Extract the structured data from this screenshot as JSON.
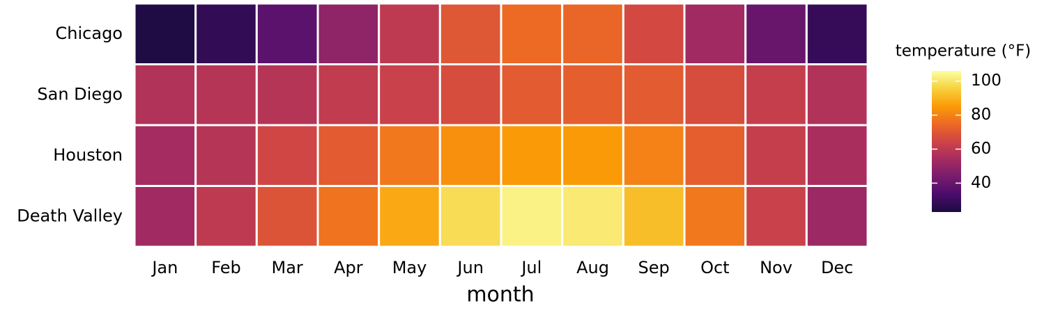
{
  "chart_data": {
    "type": "heatmap",
    "x_label": "month",
    "legend_title": "temperature (°F)",
    "categories": [
      "Jan",
      "Feb",
      "Mar",
      "Apr",
      "May",
      "Jun",
      "Jul",
      "Aug",
      "Sep",
      "Oct",
      "Nov",
      "Dec"
    ],
    "rows": [
      "Chicago",
      "San Diego",
      "Houston",
      "Death Valley"
    ],
    "values": [
      [
        24,
        28,
        37,
        49,
        60,
        70,
        75,
        74,
        66,
        53,
        40,
        29
      ],
      [
        57,
        58,
        58,
        61,
        63,
        67,
        71,
        72,
        71,
        67,
        62,
        57
      ],
      [
        54,
        58,
        65,
        71,
        78,
        83,
        85,
        85,
        80,
        72,
        62,
        55
      ],
      [
        53,
        60,
        69,
        77,
        88,
        98,
        103,
        101,
        92,
        78,
        63,
        52
      ]
    ],
    "zlim": [
      23,
      106
    ],
    "zticks": [
      40,
      60,
      80,
      100
    ],
    "colormap": [
      "#1b0c41",
      "#4a0c6b",
      "#781c6d",
      "#a52c60",
      "#cf4446",
      "#ed6925",
      "#fb9b06",
      "#f7d13d",
      "#fcffa4"
    ]
  }
}
